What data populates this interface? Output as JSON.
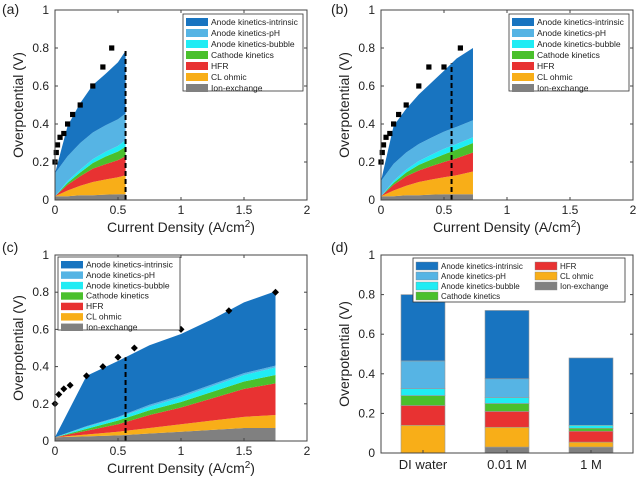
{
  "figure": {
    "series_names": [
      "Ion-exchange",
      "CL ohmic",
      "HFR",
      "Cathode kinetics",
      "Anode kinetics-bubble",
      "Anode kinetics-pH",
      "Anode kinetics-intrinsic"
    ],
    "legend_order": [
      "Anode kinetics-intrinsic",
      "Anode kinetics-pH",
      "Anode kinetics-bubble",
      "Cathode kinetics",
      "HFR",
      "CL ohmic",
      "Ion-exchange"
    ],
    "colors": {
      "Anode kinetics-intrinsic": "#1874c0",
      "Anode kinetics-pH": "#56b4e4",
      "Anode kinetics-bubble": "#20ecf4",
      "Cathode kinetics": "#4ac02c",
      "HFR": "#e83232",
      "CL ohmic": "#f8ae18",
      "Ion-exchange": "#808080",
      "markers": "#000000"
    }
  },
  "chart_data": [
    {
      "panel_label": "(a)",
      "type": "area",
      "xlabel": "Current Density (A/cm",
      "xlabel_sup": "2",
      "xlabel_end": ")",
      "ylabel": "Overpotential (V)",
      "xlim": [
        0,
        2
      ],
      "ylim": [
        0,
        1
      ],
      "xticks": [
        "0",
        "0.5",
        "1",
        "1.5",
        "2"
      ],
      "yticks": [
        "0",
        "0.2",
        "0.4",
        "0.6",
        "0.8",
        "1"
      ],
      "legend_position": "top-right",
      "x": [
        0,
        0.1,
        0.2,
        0.3,
        0.4,
        0.5,
        0.56
      ],
      "series": [
        {
          "name": "Ion-exchange",
          "values": [
            0.02,
            0.02,
            0.025,
            0.025,
            0.028,
            0.03,
            0.03
          ]
        },
        {
          "name": "CL ohmic",
          "values": [
            0.0,
            0.03,
            0.05,
            0.07,
            0.08,
            0.09,
            0.1
          ]
        },
        {
          "name": "HFR",
          "values": [
            0.0,
            0.03,
            0.05,
            0.07,
            0.08,
            0.09,
            0.1
          ]
        },
        {
          "name": "Cathode kinetics",
          "values": [
            0.0,
            0.01,
            0.02,
            0.03,
            0.04,
            0.045,
            0.05
          ]
        },
        {
          "name": "Anode kinetics-bubble",
          "values": [
            0.0,
            0.01,
            0.015,
            0.02,
            0.025,
            0.03,
            0.035
          ]
        },
        {
          "name": "Anode kinetics-pH",
          "values": [
            0.12,
            0.13,
            0.14,
            0.14,
            0.14,
            0.14,
            0.14
          ]
        },
        {
          "name": "Anode kinetics-intrinsic",
          "values": [
            0.0,
            0.16,
            0.21,
            0.25,
            0.27,
            0.3,
            0.33
          ]
        }
      ],
      "markers": {
        "x": [
          0.0,
          0.01,
          0.02,
          0.04,
          0.07,
          0.1,
          0.14,
          0.2,
          0.3,
          0.38,
          0.45
        ],
        "y": [
          0.2,
          0.25,
          0.29,
          0.33,
          0.35,
          0.4,
          0.45,
          0.5,
          0.6,
          0.7,
          0.8
        ]
      },
      "dashed_line_x": 0.56
    },
    {
      "panel_label": "(b)",
      "type": "area",
      "xlabel": "Current Density (A/cm",
      "xlabel_sup": "2",
      "xlabel_end": ")",
      "ylabel": "Overpotential (V)",
      "xlim": [
        0,
        2
      ],
      "ylim": [
        0,
        1
      ],
      "xticks": [
        "0",
        "0.5",
        "1",
        "1.5",
        "2"
      ],
      "yticks": [
        "0",
        "0.2",
        "0.4",
        "0.6",
        "0.8",
        "1"
      ],
      "legend_position": "top-right",
      "x": [
        0,
        0.1,
        0.2,
        0.3,
        0.4,
        0.5,
        0.6,
        0.73
      ],
      "series": [
        {
          "name": "Ion-exchange",
          "values": [
            0.02,
            0.02,
            0.025,
            0.025,
            0.028,
            0.03,
            0.03,
            0.03
          ]
        },
        {
          "name": "CL ohmic",
          "values": [
            0.0,
            0.03,
            0.05,
            0.07,
            0.08,
            0.09,
            0.1,
            0.12
          ]
        },
        {
          "name": "HFR",
          "values": [
            0.0,
            0.03,
            0.05,
            0.06,
            0.07,
            0.08,
            0.09,
            0.1
          ]
        },
        {
          "name": "Cathode kinetics",
          "values": [
            0.0,
            0.01,
            0.02,
            0.03,
            0.035,
            0.04,
            0.045,
            0.05
          ]
        },
        {
          "name": "Anode kinetics-bubble",
          "values": [
            0.0,
            0.01,
            0.015,
            0.02,
            0.025,
            0.03,
            0.03,
            0.03
          ]
        },
        {
          "name": "Anode kinetics-pH",
          "values": [
            0.08,
            0.09,
            0.09,
            0.09,
            0.09,
            0.09,
            0.09,
            0.09
          ]
        },
        {
          "name": "Anode kinetics-intrinsic",
          "values": [
            0.0,
            0.2,
            0.23,
            0.26,
            0.29,
            0.32,
            0.36,
            0.38
          ]
        }
      ],
      "markers": {
        "x": [
          0.0,
          0.01,
          0.02,
          0.04,
          0.07,
          0.1,
          0.14,
          0.2,
          0.3,
          0.38,
          0.5,
          0.63
        ],
        "y": [
          0.2,
          0.25,
          0.29,
          0.33,
          0.35,
          0.4,
          0.45,
          0.5,
          0.6,
          0.7,
          0.7,
          0.8
        ]
      },
      "dashed_line_x": 0.56
    },
    {
      "panel_label": "(c)",
      "type": "area",
      "xlabel": "Current Density (A/cm",
      "xlabel_sup": "2",
      "xlabel_end": ")",
      "ylabel": "Overpotential (V)",
      "xlim": [
        0,
        2
      ],
      "ylim": [
        0,
        1
      ],
      "xticks": [
        "0",
        "0.5",
        "1",
        "1.5",
        "2"
      ],
      "yticks": [
        "0",
        "0.2",
        "0.4",
        "0.6",
        "0.8",
        "1"
      ],
      "legend_position": "top-left",
      "x": [
        0,
        0.25,
        0.5,
        0.75,
        1.0,
        1.25,
        1.5,
        1.75
      ],
      "series": [
        {
          "name": "Ion-exchange",
          "values": [
            0.02,
            0.025,
            0.03,
            0.04,
            0.05,
            0.06,
            0.07,
            0.07
          ]
        },
        {
          "name": "CL ohmic",
          "values": [
            0.0,
            0.01,
            0.02,
            0.03,
            0.04,
            0.05,
            0.06,
            0.07
          ]
        },
        {
          "name": "HFR",
          "values": [
            0.0,
            0.02,
            0.04,
            0.07,
            0.09,
            0.12,
            0.15,
            0.17
          ]
        },
        {
          "name": "Cathode kinetics",
          "values": [
            0.0,
            0.01,
            0.02,
            0.025,
            0.03,
            0.035,
            0.04,
            0.045
          ]
        },
        {
          "name": "Anode kinetics-bubble",
          "values": [
            0.0,
            0.01,
            0.015,
            0.02,
            0.025,
            0.03,
            0.035,
            0.04
          ]
        },
        {
          "name": "Anode kinetics-pH",
          "values": [
            0.0,
            0.005,
            0.005,
            0.01,
            0.01,
            0.01,
            0.01,
            0.01
          ]
        },
        {
          "name": "Anode kinetics-intrinsic",
          "values": [
            0.0,
            0.27,
            0.3,
            0.32,
            0.33,
            0.35,
            0.38,
            0.4
          ]
        }
      ],
      "markers": {
        "x": [
          0.0,
          0.03,
          0.07,
          0.12,
          0.25,
          0.38,
          0.5,
          0.63,
          1.0,
          1.38,
          1.75
        ],
        "y": [
          0.2,
          0.25,
          0.28,
          0.3,
          0.35,
          0.4,
          0.45,
          0.5,
          0.6,
          0.7,
          0.8
        ]
      },
      "dashed_line_x": 0.56
    },
    {
      "panel_label": "(d)",
      "type": "bar",
      "stacked": true,
      "ylabel": "Overpotential (V)",
      "ylim": [
        0,
        1
      ],
      "yticks": [
        "0",
        "0.2",
        "0.4",
        "0.6",
        "0.8",
        "1"
      ],
      "categories": [
        "DI water",
        "0.01 M",
        "1 M"
      ],
      "legend_position": "top",
      "series": [
        {
          "name": "Ion-exchange",
          "values": [
            0.0,
            0.03,
            0.03
          ]
        },
        {
          "name": "CL ohmic",
          "values": [
            0.14,
            0.1,
            0.025
          ]
        },
        {
          "name": "HFR",
          "values": [
            0.1,
            0.08,
            0.055
          ]
        },
        {
          "name": "Cathode kinetics",
          "values": [
            0.05,
            0.04,
            0.015
          ]
        },
        {
          "name": "Anode kinetics-bubble",
          "values": [
            0.035,
            0.03,
            0.015
          ]
        },
        {
          "name": "Anode kinetics-pH",
          "values": [
            0.14,
            0.095,
            0.0
          ]
        },
        {
          "name": "Anode kinetics-intrinsic",
          "values": [
            0.335,
            0.345,
            0.34
          ]
        }
      ]
    }
  ]
}
